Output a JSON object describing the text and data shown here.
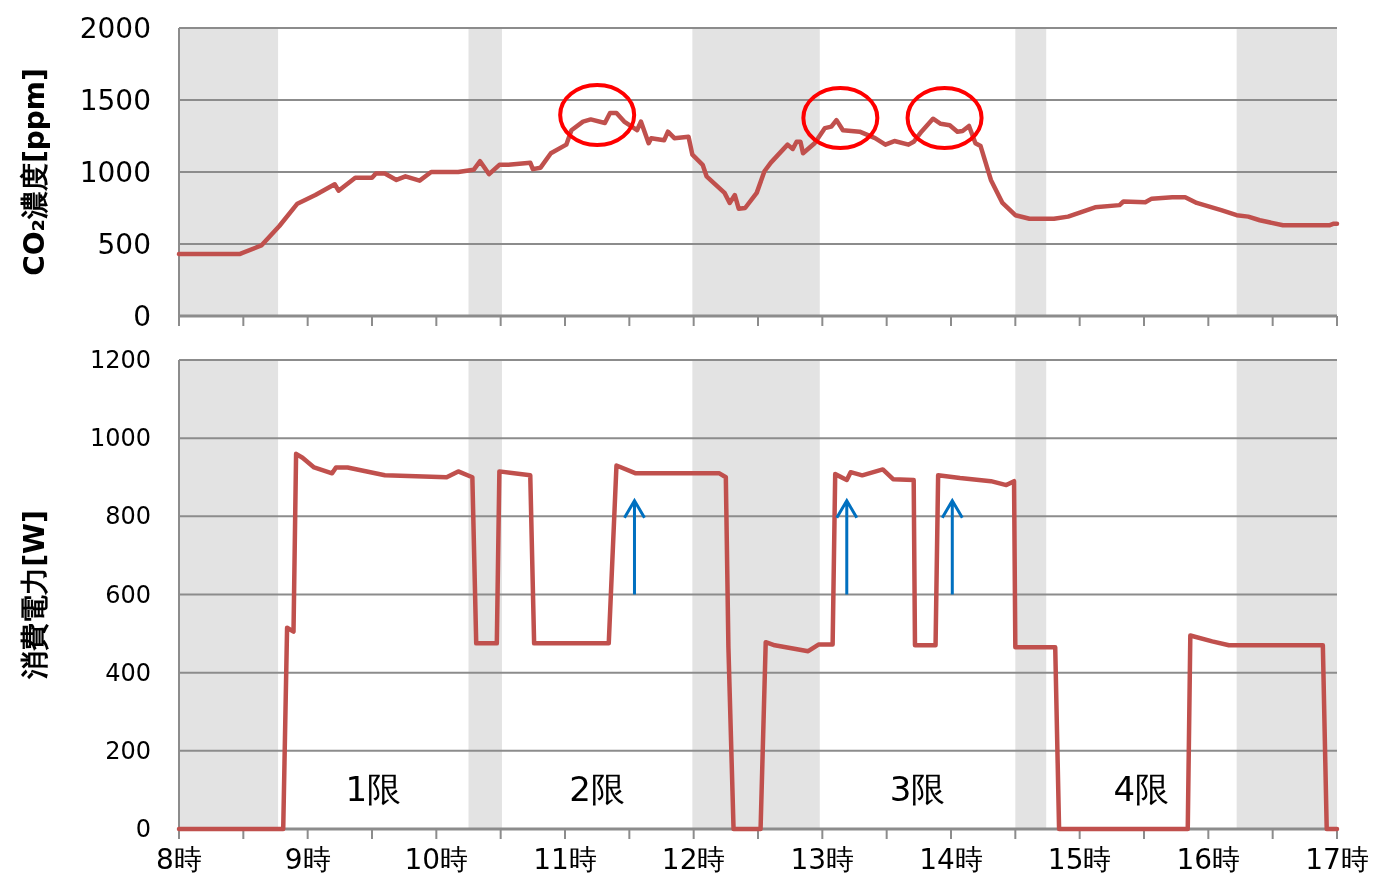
{
  "chart_data": [
    {
      "type": "line",
      "ylabel": "CO₂濃度[ppm]",
      "xlim": [
        8,
        17
      ],
      "ylim": [
        0,
        2000
      ],
      "yticks": [
        0,
        500,
        1000,
        1500,
        2000
      ],
      "xticks": [
        {
          "value": 8,
          "label": null
        },
        {
          "value": 8.5,
          "label": null
        },
        {
          "value": 9,
          "label": null
        },
        {
          "value": 9.5,
          "label": null
        },
        {
          "value": 10,
          "label": null
        },
        {
          "value": 10.5,
          "label": null
        },
        {
          "value": 11,
          "label": null
        },
        {
          "value": 11.5,
          "label": null
        },
        {
          "value": 12,
          "label": null
        },
        {
          "value": 12.5,
          "label": null
        },
        {
          "value": 13,
          "label": null
        },
        {
          "value": 13.5,
          "label": null
        },
        {
          "value": 14,
          "label": null
        },
        {
          "value": 14.5,
          "label": null
        },
        {
          "value": 15,
          "label": null
        },
        {
          "value": 15.5,
          "label": null
        },
        {
          "value": 16,
          "label": null
        },
        {
          "value": 16.5,
          "label": null
        },
        {
          "value": 17,
          "label": null
        }
      ],
      "tick_labels": "y",
      "grid": "y",
      "line_style": "solid",
      "marker": "none",
      "bands": [
        {
          "axis": "x",
          "from": 8,
          "to": 8.77,
          "color": "#e3e3e3"
        },
        {
          "axis": "x",
          "from": 10.25,
          "to": 10.51,
          "color": "#e3e3e3"
        },
        {
          "axis": "x",
          "from": 11.99,
          "to": 12.98,
          "color": "#e3e3e3"
        },
        {
          "axis": "x",
          "from": 14.5,
          "to": 14.74,
          "color": "#e3e3e3"
        },
        {
          "axis": "x",
          "from": 16.22,
          "to": 17,
          "color": "#e3e3e3"
        }
      ],
      "series": [
        {
          "color": "#c0504d",
          "x": [
            8.0,
            8.47,
            8.64,
            8.78,
            8.92,
            9.06,
            9.21,
            9.24,
            9.37,
            9.5,
            9.53,
            9.6,
            9.69,
            9.76,
            9.87,
            9.96,
            10.17,
            10.29,
            10.34,
            10.41,
            10.49,
            10.56,
            10.73,
            10.75,
            10.81,
            10.89,
            11.01,
            11.05,
            11.14,
            11.2,
            11.31,
            11.35,
            11.4,
            11.46,
            11.56,
            11.59,
            11.65,
            11.67,
            11.77,
            11.8,
            11.85,
            11.96,
            11.99,
            12.07,
            12.1,
            12.24,
            12.28,
            12.32,
            12.35,
            12.4,
            12.49,
            12.55,
            12.6,
            12.73,
            12.77,
            12.8,
            12.83,
            12.85,
            12.94,
            13.02,
            13.07,
            13.11,
            13.16,
            13.29,
            13.41,
            13.49,
            13.56,
            13.67,
            13.71,
            13.77,
            13.86,
            13.92,
            13.99,
            14.05,
            14.09,
            14.14,
            14.19,
            14.23,
            14.31,
            14.4,
            14.5,
            14.61,
            14.8,
            14.91,
            15.12,
            15.31,
            15.34,
            15.51,
            15.56,
            15.72,
            15.82,
            15.91,
            16.1,
            16.22,
            16.31,
            16.4,
            16.58,
            16.94,
            16.97,
            17.0
          ],
          "values": [
            430,
            430,
            490,
            625,
            780,
            840,
            915,
            870,
            960,
            960,
            990,
            990,
            945,
            970,
            940,
            1000,
            1000,
            1015,
            1075,
            985,
            1050,
            1050,
            1065,
            1020,
            1030,
            1130,
            1190,
            1290,
            1350,
            1365,
            1340,
            1410,
            1410,
            1350,
            1290,
            1350,
            1200,
            1235,
            1220,
            1280,
            1235,
            1245,
            1120,
            1050,
            970,
            855,
            785,
            840,
            745,
            750,
            855,
            1005,
            1065,
            1190,
            1160,
            1210,
            1210,
            1130,
            1200,
            1305,
            1315,
            1360,
            1290,
            1280,
            1235,
            1190,
            1215,
            1190,
            1210,
            1280,
            1370,
            1335,
            1325,
            1280,
            1285,
            1320,
            1200,
            1180,
            945,
            785,
            700,
            675,
            675,
            690,
            755,
            770,
            795,
            790,
            815,
            825,
            825,
            785,
            735,
            700,
            690,
            665,
            630,
            630,
            640,
            640
          ]
        }
      ]
    },
    {
      "type": "line",
      "ylabel": "消費電力[W]",
      "xlim": [
        8,
        17
      ],
      "ylim": [
        0,
        1200
      ],
      "yticks": [
        0,
        200,
        400,
        600,
        800,
        1000,
        1200
      ],
      "xticks": [
        {
          "value": 8,
          "label": "8時"
        },
        {
          "value": 8.5,
          "label": null
        },
        {
          "value": 9,
          "label": "9時"
        },
        {
          "value": 9.5,
          "label": null
        },
        {
          "value": 10,
          "label": "10時"
        },
        {
          "value": 10.5,
          "label": null
        },
        {
          "value": 11,
          "label": "11時"
        },
        {
          "value": 11.5,
          "label": null
        },
        {
          "value": 12,
          "label": "12時"
        },
        {
          "value": 12.5,
          "label": null
        },
        {
          "value": 13,
          "label": "13時"
        },
        {
          "value": 13.5,
          "label": null
        },
        {
          "value": 14,
          "label": "14時"
        },
        {
          "value": 14.5,
          "label": null
        },
        {
          "value": 15,
          "label": "15時"
        },
        {
          "value": 15.5,
          "label": null
        },
        {
          "value": 16,
          "label": "16時"
        },
        {
          "value": 16.5,
          "label": null
        },
        {
          "value": 17,
          "label": "17時"
        }
      ],
      "grid": "y",
      "line_style": "solid",
      "marker": "none",
      "bands": [
        {
          "axis": "x",
          "from": 8,
          "to": 8.77,
          "color": "#e3e3e3"
        },
        {
          "axis": "x",
          "from": 10.25,
          "to": 10.51,
          "color": "#e3e3e3"
        },
        {
          "axis": "x",
          "from": 11.99,
          "to": 12.98,
          "color": "#e3e3e3"
        },
        {
          "axis": "x",
          "from": 14.5,
          "to": 14.74,
          "color": "#e3e3e3"
        },
        {
          "axis": "x",
          "from": 16.22,
          "to": 17,
          "color": "#e3e3e3"
        }
      ],
      "annotations": [
        "1限",
        "2限",
        "3限",
        "4限"
      ],
      "series": [
        {
          "color": "#c0504d",
          "x": [
            8.0,
            8.81,
            8.84,
            8.89,
            8.91,
            8.96,
            9.05,
            9.19,
            9.22,
            9.31,
            9.6,
            10.08,
            10.17,
            10.28,
            10.31,
            10.47,
            10.49,
            10.73,
            10.76,
            11.34,
            11.4,
            11.55,
            12.2,
            12.25,
            12.27,
            12.31,
            12.52,
            12.56,
            12.63,
            12.89,
            12.97,
            13.08,
            13.1,
            13.19,
            13.22,
            13.31,
            13.47,
            13.55,
            13.71,
            13.72,
            13.88,
            13.9,
            14.07,
            14.31,
            14.43,
            14.49,
            14.5,
            14.81,
            14.84,
            15.84,
            15.86,
            16.03,
            16.16,
            16.89,
            16.92,
            17.0
          ],
          "values": [
            0,
            0,
            515,
            505,
            960,
            950,
            925,
            910,
            925,
            925,
            905,
            900,
            915,
            900,
            475,
            475,
            915,
            905,
            475,
            475,
            930,
            910,
            910,
            900,
            465,
            0,
            0,
            478,
            470,
            455,
            472,
            472,
            908,
            893,
            913,
            905,
            920,
            895,
            893,
            470,
            470,
            905,
            898,
            890,
            880,
            890,
            465,
            465,
            0,
            0,
            495,
            480,
            470,
            470,
            0,
            0
          ]
        }
      ]
    }
  ]
}
